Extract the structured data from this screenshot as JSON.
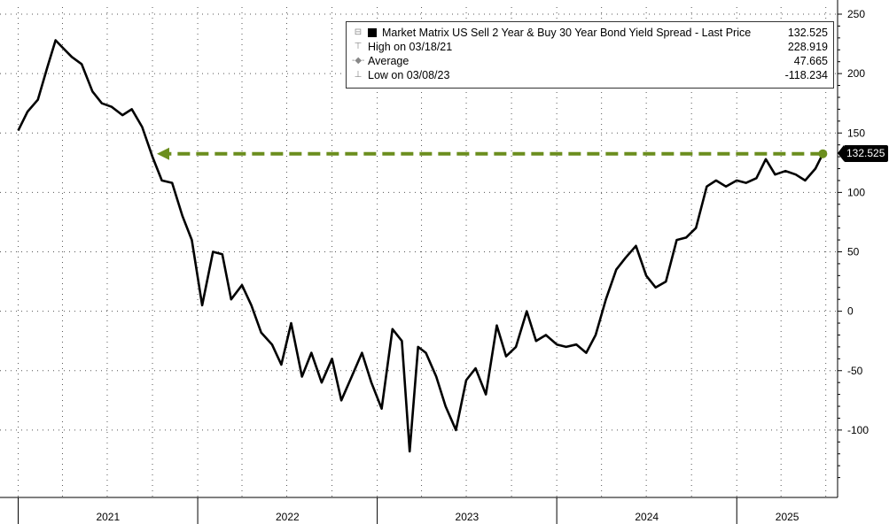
{
  "legend": {
    "title": "Market Matrix US Sell 2 Year & Buy 30 Year Bond Yield Spread - Last Price",
    "last_value": "132.525",
    "high_label": "High on 03/18/21",
    "high_value": "228.919",
    "average_label": "Average",
    "average_value": "47.665",
    "low_label": "Low on 03/08/23",
    "low_value": "-118.234"
  },
  "last_price_tag": "132.525",
  "colors": {
    "line": "#000000",
    "marker": "#6b8e1e",
    "grid": "#555555",
    "background": "#ffffff"
  },
  "chart_data": {
    "type": "line",
    "series": [
      {
        "name": "Market Matrix US Sell 2 Year & Buy 30 Year Bond Yield Spread - Last Price",
        "x": [
          "2021-01-01",
          "2021-01-20",
          "2021-02-10",
          "2021-03-01",
          "2021-03-18",
          "2021-04-01",
          "2021-04-20",
          "2021-05-10",
          "2021-06-01",
          "2021-06-20",
          "2021-07-10",
          "2021-08-01",
          "2021-08-20",
          "2021-09-10",
          "2021-10-01",
          "2021-10-20",
          "2021-11-10",
          "2021-12-01",
          "2021-12-20",
          "2022-01-10",
          "2022-02-01",
          "2022-02-20",
          "2022-03-10",
          "2022-04-01",
          "2022-04-20",
          "2022-05-10",
          "2022-06-01",
          "2022-06-20",
          "2022-07-10",
          "2022-08-01",
          "2022-08-20",
          "2022-09-10",
          "2022-10-01",
          "2022-10-20",
          "2022-11-10",
          "2022-12-01",
          "2022-12-20",
          "2023-01-10",
          "2023-02-01",
          "2023-02-20",
          "2023-03-08",
          "2023-03-25",
          "2023-04-10",
          "2023-05-01",
          "2023-05-20",
          "2023-06-10",
          "2023-07-01",
          "2023-07-20",
          "2023-08-10",
          "2023-09-01",
          "2023-09-20",
          "2023-10-10",
          "2023-11-01",
          "2023-11-20",
          "2023-12-10",
          "2024-01-01",
          "2024-01-20",
          "2024-02-10",
          "2024-03-01",
          "2024-03-20",
          "2024-04-10",
          "2024-05-01",
          "2024-05-20",
          "2024-06-10",
          "2024-07-01",
          "2024-07-20",
          "2024-08-10",
          "2024-09-01",
          "2024-09-20",
          "2024-10-10",
          "2024-11-01",
          "2024-11-20",
          "2024-12-10",
          "2025-01-01",
          "2025-01-20",
          "2025-02-10",
          "2025-03-01",
          "2025-03-20",
          "2025-04-10",
          "2025-05-01",
          "2025-05-20",
          "2025-06-10",
          "2025-06-25"
        ],
        "values": [
          152,
          168,
          178,
          205,
          228,
          222,
          214,
          208,
          185,
          175,
          172,
          165,
          170,
          155,
          130,
          110,
          108,
          80,
          60,
          5,
          50,
          48,
          10,
          22,
          5,
          -18,
          -28,
          -45,
          -10,
          -55,
          -35,
          -60,
          -40,
          -75,
          -55,
          -35,
          -60,
          -82,
          -15,
          -25,
          -118,
          -30,
          -35,
          -55,
          -80,
          -100,
          -58,
          -48,
          -70,
          -12,
          -38,
          -30,
          0,
          -25,
          -20,
          -28,
          -30,
          -28,
          -35,
          -20,
          10,
          35,
          45,
          55,
          30,
          20,
          25,
          60,
          62,
          70,
          105,
          110,
          105,
          110,
          108,
          112,
          128,
          115,
          118,
          115,
          110,
          120,
          132.525
        ]
      }
    ],
    "xlabel": "",
    "ylabel": "",
    "xlim": [
      "2020-11-25",
      "2025-07-25"
    ],
    "ylim": [
      -150,
      250
    ],
    "y_ticks": [
      -100,
      -50,
      0,
      50,
      100,
      150,
      200,
      250
    ],
    "x_tick_labels": [
      "2021",
      "2022",
      "2023",
      "2024",
      "2025"
    ],
    "y_axis_side": "right",
    "grid": true,
    "legend_position": "top-right",
    "annotations": [
      {
        "type": "dashed-arrow",
        "from_x": "2025-06-25",
        "to_x": "2021-10-10",
        "y": 132.525,
        "color": "#6b8e1e"
      }
    ]
  }
}
